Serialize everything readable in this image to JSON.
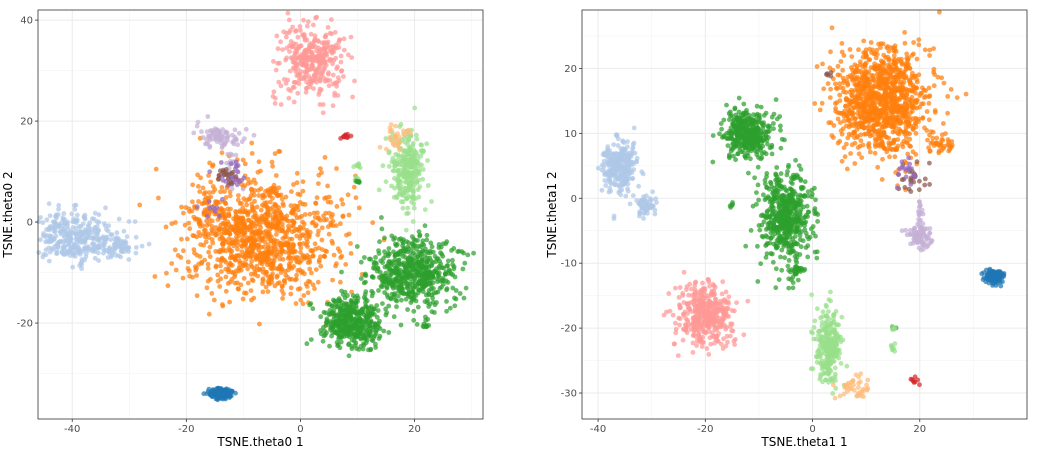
{
  "chart_data": [
    {
      "type": "scatter",
      "title": "",
      "xlabel": "TSNE.theta0 1",
      "ylabel": "TSNE.theta0 2",
      "xlim": [
        -46,
        32
      ],
      "ylim": [
        -39,
        42
      ],
      "xticks": [
        -40,
        -20,
        0,
        20
      ],
      "yticks": [
        -20,
        0,
        20,
        40
      ],
      "grid": true,
      "legend": "none",
      "series": [
        {
          "color": "#aec7e8",
          "points": [
            {
              "x": -40,
              "y": -3,
              "sx": 5,
              "sy": 3.2,
              "n": 330
            },
            {
              "x": -32,
              "y": -5,
              "sx": 2.5,
              "sy": 1.6,
              "n": 60
            },
            {
              "x": -30,
              "y": 0,
              "sx": 0.3,
              "sy": 0.3,
              "n": 1
            }
          ]
        },
        {
          "color": "#ff9896",
          "points": [
            {
              "x": 2,
              "y": 32,
              "sx": 4,
              "sy": 4.8,
              "n": 330
            }
          ]
        },
        {
          "color": "#ff7f0e",
          "points": [
            {
              "x": -7,
              "y": -3,
              "sx": 9,
              "sy": 8,
              "n": 1050
            },
            {
              "x": -16,
              "y": 3,
              "sx": 2,
              "sy": 2,
              "n": 25
            }
          ]
        },
        {
          "color": "#c5b0d5",
          "points": [
            {
              "x": -14,
              "y": 17,
              "sx": 2.5,
              "sy": 1.5,
              "n": 75
            },
            {
              "x": -12,
              "y": 11,
              "sx": 1,
              "sy": 3,
              "n": 25
            }
          ]
        },
        {
          "color": "#9467bd",
          "points": [
            {
              "x": -12,
              "y": 9,
              "sx": 2,
              "sy": 2,
              "n": 25
            },
            {
              "x": -16,
              "y": 3,
              "sx": 1.5,
              "sy": 1.5,
              "n": 10
            }
          ]
        },
        {
          "color": "#8c564b",
          "points": [
            {
              "x": -13,
              "y": 9,
              "sx": 1.5,
              "sy": 1.5,
              "n": 18
            }
          ]
        },
        {
          "color": "#98df8a",
          "points": [
            {
              "x": 19,
              "y": 10,
              "sx": 2,
              "sy": 5,
              "n": 260
            },
            {
              "x": 10,
              "y": 11,
              "sx": 0.5,
              "sy": 0.5,
              "n": 8
            },
            {
              "x": 10,
              "y": 8,
              "sx": 0.5,
              "sy": 0.5,
              "n": 8
            }
          ]
        },
        {
          "color": "#ffbb78",
          "points": [
            {
              "x": 17,
              "y": 17,
              "sx": 1.5,
              "sy": 1.5,
              "n": 30
            }
          ]
        },
        {
          "color": "#2ca02c",
          "points": [
            {
              "x": 20,
              "y": -10,
              "sx": 5,
              "sy": 4.5,
              "n": 560
            },
            {
              "x": 9,
              "y": -20,
              "sx": 3.5,
              "sy": 3.2,
              "n": 420
            },
            {
              "x": 22,
              "y": -20.5,
              "sx": 0.4,
              "sy": 0.4,
              "n": 8
            },
            {
              "x": 10,
              "y": 8,
              "sx": 0.4,
              "sy": 0.4,
              "n": 6
            }
          ]
        },
        {
          "color": "#d62728",
          "points": [
            {
              "x": 8,
              "y": 17,
              "sx": 0.5,
              "sy": 0.4,
              "n": 10
            }
          ]
        },
        {
          "color": "#1f77b4",
          "points": [
            {
              "x": -14,
              "y": -34,
              "sx": 1.5,
              "sy": 0.8,
              "n": 120
            }
          ]
        }
      ]
    },
    {
      "type": "scatter",
      "title": "",
      "xlabel": "TSNE.theta1 1",
      "ylabel": "TSNE.theta1 2",
      "xlim": [
        -43,
        40
      ],
      "ylim": [
        -34,
        29
      ],
      "xticks": [
        -40,
        -20,
        0,
        20
      ],
      "yticks": [
        -30,
        -20,
        -10,
        0,
        10,
        20
      ],
      "grid": true,
      "legend": "none",
      "series": [
        {
          "color": "#aec7e8",
          "points": [
            {
              "x": -36,
              "y": 5,
              "sx": 2.2,
              "sy": 2.5,
              "n": 280
            },
            {
              "x": -31,
              "y": -1,
              "sx": 1.5,
              "sy": 1.2,
              "n": 60
            },
            {
              "x": -37,
              "y": -3,
              "sx": 0.3,
              "sy": 0.3,
              "n": 2
            }
          ]
        },
        {
          "color": "#ff9896",
          "points": [
            {
              "x": -20,
              "y": -18,
              "sx": 3.5,
              "sy": 3,
              "n": 400
            }
          ]
        },
        {
          "color": "#ff7f0e",
          "points": [
            {
              "x": 13,
              "y": 15,
              "sx": 5.5,
              "sy": 5.5,
              "n": 1100
            },
            {
              "x": 24,
              "y": 8,
              "sx": 1.5,
              "sy": 1,
              "n": 30
            }
          ]
        },
        {
          "color": "#8c564b",
          "points": [
            {
              "x": 19,
              "y": 3,
              "sx": 2,
              "sy": 1.5,
              "n": 25
            },
            {
              "x": 3,
              "y": 19,
              "sx": 0.5,
              "sy": 0.5,
              "n": 5
            }
          ]
        },
        {
          "color": "#9467bd",
          "points": [
            {
              "x": 18,
              "y": 4,
              "sx": 2,
              "sy": 1.5,
              "n": 18
            }
          ]
        },
        {
          "color": "#c5b0d5",
          "points": [
            {
              "x": 20,
              "y": -6,
              "sx": 1.5,
              "sy": 1.2,
              "n": 80
            },
            {
              "x": 20,
              "y": -2,
              "sx": 0.4,
              "sy": 1.5,
              "n": 15
            }
          ]
        },
        {
          "color": "#2ca02c",
          "points": [
            {
              "x": -12,
              "y": 10,
              "sx": 3,
              "sy": 2.5,
              "n": 380
            },
            {
              "x": -5,
              "y": -3,
              "sx": 3,
              "sy": 5,
              "n": 520
            },
            {
              "x": -3,
              "y": -11,
              "sx": 0.8,
              "sy": 0.5,
              "n": 20
            },
            {
              "x": -15,
              "y": -1,
              "sx": 0.3,
              "sy": 0.3,
              "n": 5
            },
            {
              "x": 15,
              "y": -20,
              "sx": 0.3,
              "sy": 0.3,
              "n": 5
            }
          ]
        },
        {
          "color": "#98df8a",
          "points": [
            {
              "x": 3,
              "y": -23,
              "sx": 1.5,
              "sy": 4,
              "n": 260
            },
            {
              "x": 15,
              "y": -23,
              "sx": 0.4,
              "sy": 0.4,
              "n": 8
            },
            {
              "x": 15,
              "y": -20,
              "sx": 0.3,
              "sy": 0.3,
              "n": 4
            }
          ]
        },
        {
          "color": "#ffbb78",
          "points": [
            {
              "x": 8,
              "y": -29,
              "sx": 2,
              "sy": 1.5,
              "n": 40
            }
          ]
        },
        {
          "color": "#d62728",
          "points": [
            {
              "x": 19,
              "y": -28,
              "sx": 0.8,
              "sy": 0.5,
              "n": 8
            }
          ]
        },
        {
          "color": "#1f77b4",
          "points": [
            {
              "x": 34,
              "y": -12,
              "sx": 1.2,
              "sy": 0.7,
              "n": 120
            }
          ]
        }
      ]
    }
  ]
}
